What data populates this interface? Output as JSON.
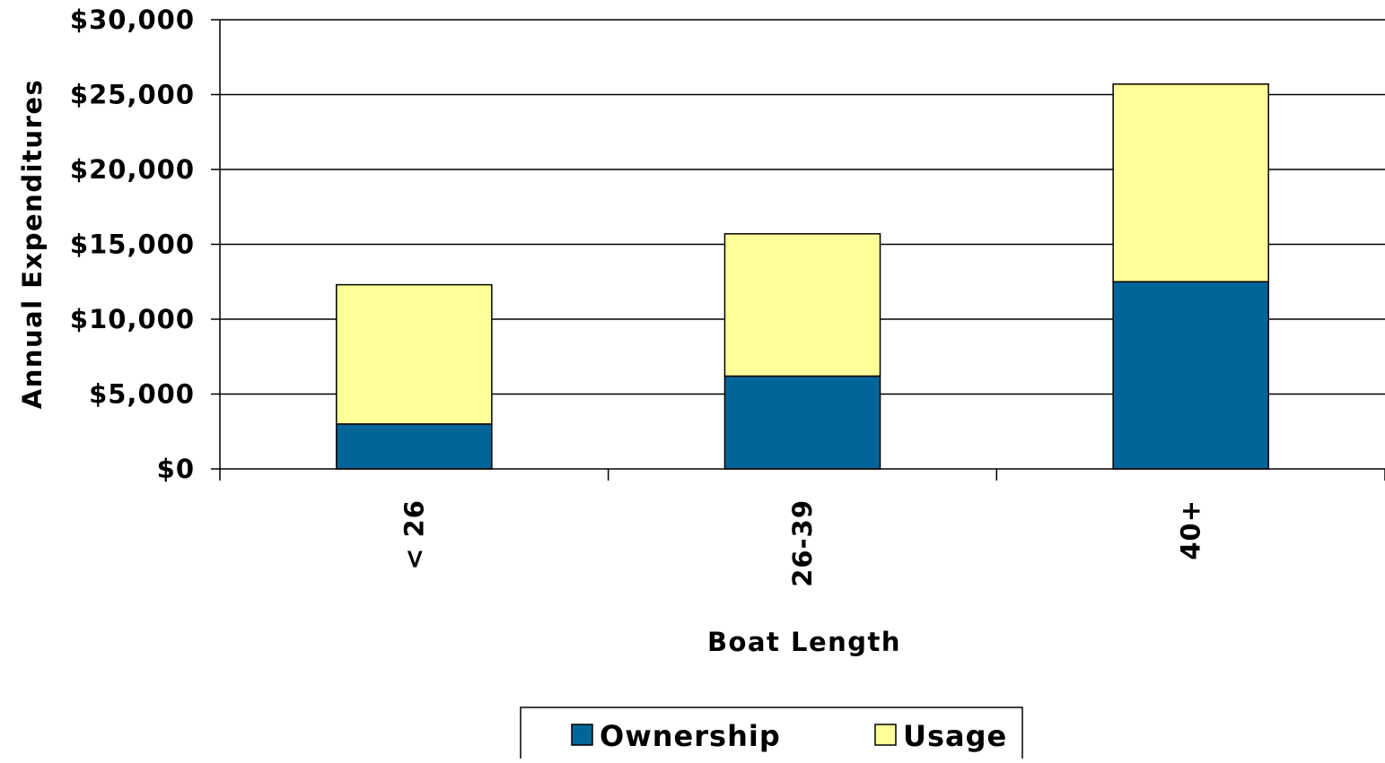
{
  "chart_data": {
    "type": "bar",
    "stacked": true,
    "title": "",
    "xlabel": "Boat Length",
    "ylabel": "Annual Expenditures",
    "categories": [
      "< 26",
      "26-39",
      "40+"
    ],
    "series": [
      {
        "name": "Ownership",
        "values": [
          3000,
          6200,
          12500
        ]
      },
      {
        "name": "Usage",
        "values": [
          9300,
          9500,
          13200
        ]
      }
    ],
    "ylim": [
      0,
      30000
    ],
    "yticks": [
      0,
      5000,
      10000,
      15000,
      20000,
      25000,
      30000
    ],
    "ytick_labels": [
      "$0",
      "$5,000",
      "$10,000",
      "$15,000",
      "$20,000",
      "$25,000",
      "$30,000"
    ],
    "grid": true,
    "legend_position": "bottom",
    "colors": {
      "Ownership": "#006699",
      "Usage": "#FFFF99"
    }
  }
}
